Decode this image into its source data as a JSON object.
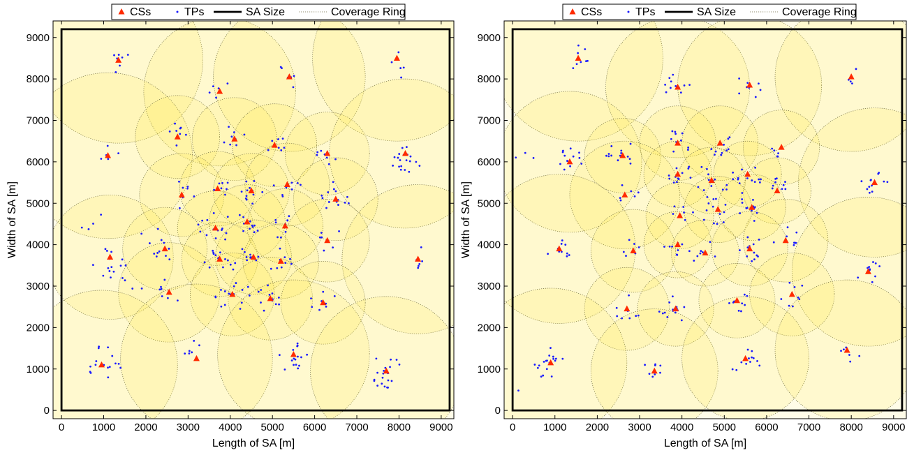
{
  "chart_data": [
    {
      "type": "scatter",
      "xlabel": "Length of SA [m]",
      "ylabel": "Width of SA [m]",
      "xlim": [
        -200,
        9300
      ],
      "ylim": [
        -200,
        9400
      ],
      "xticks": [
        0,
        1000,
        2000,
        3000,
        4000,
        5000,
        6000,
        7000,
        8000,
        9000
      ],
      "yticks": [
        0,
        1000,
        2000,
        3000,
        4000,
        5000,
        6000,
        7000,
        8000,
        9000
      ],
      "sa_size": [
        0,
        0,
        9200,
        9200
      ],
      "legend": {
        "position": "top",
        "entries": [
          "CSs",
          "TPs",
          "SA Size",
          "Coverage Ring"
        ]
      },
      "series": [
        {
          "name": "CSs",
          "marker": "triangle",
          "color": "#ff2a00",
          "points": [
            [
              1350,
              8450
            ],
            [
              3750,
              7700
            ],
            [
              5400,
              8050
            ],
            [
              7950,
              8500
            ],
            [
              1100,
              6150
            ],
            [
              2750,
              6600
            ],
            [
              4100,
              6550
            ],
            [
              5050,
              6400
            ],
            [
              6300,
              6200
            ],
            [
              8150,
              6200
            ],
            [
              2850,
              5200
            ],
            [
              3700,
              5350
            ],
            [
              4500,
              5300
            ],
            [
              5350,
              5450
            ],
            [
              6500,
              5100
            ],
            [
              3650,
              4400
            ],
            [
              4400,
              4550
            ],
            [
              5300,
              4450
            ],
            [
              6300,
              4100
            ],
            [
              1150,
              3700
            ],
            [
              2450,
              3900
            ],
            [
              3750,
              3650
            ],
            [
              4550,
              3700
            ],
            [
              5200,
              3600
            ],
            [
              8450,
              3650
            ],
            [
              2550,
              2850
            ],
            [
              4050,
              2800
            ],
            [
              4950,
              2700
            ],
            [
              6200,
              2600
            ],
            [
              950,
              1100
            ],
            [
              3200,
              1250
            ],
            [
              5500,
              1350
            ],
            [
              7700,
              950
            ]
          ]
        },
        {
          "name": "TPs",
          "marker": "dot",
          "color": "#1a1aff",
          "clusters": [
            [
              1350,
              8450,
              7
            ],
            [
              3750,
              7700,
              6
            ],
            [
              5400,
              8050,
              6
            ],
            [
              8050,
              8350,
              5
            ],
            [
              1100,
              6150,
              5
            ],
            [
              2750,
              6600,
              8
            ],
            [
              4100,
              6550,
              9
            ],
            [
              5050,
              6400,
              7
            ],
            [
              6300,
              6200,
              8
            ],
            [
              8200,
              6100,
              20
            ],
            [
              2850,
              5200,
              7
            ],
            [
              3700,
              5350,
              8
            ],
            [
              4500,
              5300,
              12
            ],
            [
              5350,
              5450,
              8
            ],
            [
              6500,
              5100,
              14
            ],
            [
              3650,
              4400,
              14
            ],
            [
              4400,
              4550,
              12
            ],
            [
              5300,
              4450,
              10
            ],
            [
              6300,
              4150,
              7
            ],
            [
              1150,
              3600,
              14
            ],
            [
              2450,
              3900,
              8
            ],
            [
              3750,
              3650,
              16
            ],
            [
              4550,
              3700,
              9
            ],
            [
              5200,
              3600,
              9
            ],
            [
              8450,
              3700,
              6
            ],
            [
              2550,
              2850,
              7
            ],
            [
              4050,
              2800,
              16
            ],
            [
              4950,
              2700,
              12
            ],
            [
              6200,
              2600,
              8
            ],
            [
              1000,
              1150,
              16
            ],
            [
              3200,
              1400,
              6
            ],
            [
              5500,
              1300,
              16
            ],
            [
              7700,
              950,
              20
            ],
            [
              1600,
              3000,
              4
            ],
            [
              2200,
              4200,
              4
            ],
            [
              700,
              4600,
              4
            ]
          ]
        },
        {
          "name": "Coverage Ring",
          "circles": [
            [
              1350,
              8450,
              2000
            ],
            [
              3750,
              7700,
              1800
            ],
            [
              5400,
              8050,
              1800
            ],
            [
              7950,
              8500,
              2000
            ],
            [
              1100,
              6150,
              2000
            ],
            [
              2750,
              6600,
              1000
            ],
            [
              4100,
              6550,
              1000
            ],
            [
              5050,
              6400,
              1000
            ],
            [
              6300,
              6200,
              1000
            ],
            [
              8150,
              6200,
              1800
            ],
            [
              2850,
              5200,
              1000
            ],
            [
              3700,
              5350,
              900
            ],
            [
              4500,
              5300,
              900
            ],
            [
              5350,
              5450,
              1000
            ],
            [
              6500,
              5100,
              1000
            ],
            [
              3650,
              4400,
              900
            ],
            [
              4400,
              4550,
              900
            ],
            [
              5300,
              4450,
              900
            ],
            [
              6300,
              4100,
              1000
            ],
            [
              1150,
              3700,
              1500
            ],
            [
              2450,
              3900,
              1000
            ],
            [
              3750,
              3650,
              900
            ],
            [
              4550,
              3700,
              900
            ],
            [
              5200,
              3600,
              900
            ],
            [
              8450,
              3650,
              1800
            ],
            [
              2550,
              2850,
              1200
            ],
            [
              4050,
              2800,
              1000
            ],
            [
              4950,
              2700,
              1000
            ],
            [
              6200,
              2600,
              1000
            ],
            [
              950,
              1100,
              1800
            ],
            [
              3200,
              1250,
              1800
            ],
            [
              5500,
              1350,
              1800
            ],
            [
              7700,
              950,
              1800
            ]
          ]
        }
      ]
    },
    {
      "type": "scatter",
      "xlabel": "Length of SA [m]",
      "ylabel": "Width of SA [m]",
      "xlim": [
        -200,
        9300
      ],
      "ylim": [
        -200,
        9400
      ],
      "xticks": [
        0,
        1000,
        2000,
        3000,
        4000,
        5000,
        6000,
        7000,
        8000,
        9000
      ],
      "yticks": [
        0,
        1000,
        2000,
        3000,
        4000,
        5000,
        6000,
        7000,
        8000,
        9000
      ],
      "sa_size": [
        0,
        0,
        9200,
        9200
      ],
      "legend": {
        "position": "top",
        "entries": [
          "CSs",
          "TPs",
          "SA Size",
          "Coverage Ring"
        ]
      },
      "series": [
        {
          "name": "CSs",
          "marker": "triangle",
          "color": "#ff2a00",
          "points": [
            [
              1550,
              8500
            ],
            [
              3900,
              7800
            ],
            [
              5600,
              7850
            ],
            [
              8000,
              8050
            ],
            [
              1350,
              6000
            ],
            [
              2600,
              6150
            ],
            [
              3900,
              6450
            ],
            [
              4900,
              6450
            ],
            [
              6350,
              6350
            ],
            [
              8550,
              5500
            ],
            [
              2650,
              5200
            ],
            [
              3900,
              5700
            ],
            [
              4700,
              5550
            ],
            [
              5550,
              5700
            ],
            [
              6250,
              5300
            ],
            [
              3950,
              4700
            ],
            [
              4850,
              4850
            ],
            [
              5650,
              4900
            ],
            [
              6450,
              4100
            ],
            [
              1100,
              3900
            ],
            [
              2850,
              3850
            ],
            [
              3900,
              4000
            ],
            [
              4550,
              3800
            ],
            [
              5600,
              3900
            ],
            [
              8400,
              3350
            ],
            [
              2700,
              2450
            ],
            [
              3850,
              2450
            ],
            [
              5300,
              2650
            ],
            [
              6600,
              2800
            ],
            [
              900,
              1150
            ],
            [
              3350,
              950
            ],
            [
              5500,
              1250
            ],
            [
              7900,
              1450
            ]
          ]
        },
        {
          "name": "TPs",
          "marker": "dot",
          "color": "#1a1aff",
          "clusters": [
            [
              1550,
              8500,
              9
            ],
            [
              3900,
              7800,
              12
            ],
            [
              5600,
              7850,
              8
            ],
            [
              7900,
              8000,
              4
            ],
            [
              1350,
              6000,
              12
            ],
            [
              2600,
              6150,
              14
            ],
            [
              3900,
              6450,
              10
            ],
            [
              4900,
              6450,
              10
            ],
            [
              6350,
              6350,
              6
            ],
            [
              8550,
              5500,
              12
            ],
            [
              2650,
              5200,
              6
            ],
            [
              3900,
              5700,
              12
            ],
            [
              4700,
              5550,
              14
            ],
            [
              5550,
              5700,
              14
            ],
            [
              6250,
              5300,
              10
            ],
            [
              3950,
              4700,
              8
            ],
            [
              4850,
              4850,
              14
            ],
            [
              5650,
              4900,
              14
            ],
            [
              6450,
              4100,
              8
            ],
            [
              1100,
              3900,
              10
            ],
            [
              2850,
              3850,
              6
            ],
            [
              3900,
              4000,
              10
            ],
            [
              4550,
              3800,
              8
            ],
            [
              5600,
              3900,
              12
            ],
            [
              8400,
              3350,
              10
            ],
            [
              2700,
              2450,
              8
            ],
            [
              3850,
              2450,
              14
            ],
            [
              5300,
              2650,
              10
            ],
            [
              6600,
              2800,
              8
            ],
            [
              900,
              1150,
              20
            ],
            [
              3350,
              950,
              8
            ],
            [
              5500,
              1250,
              14
            ],
            [
              7900,
              1450,
              6
            ],
            [
              300,
              6200,
              3
            ],
            [
              100,
              400,
              1
            ]
          ]
        },
        {
          "name": "Coverage Ring",
          "circles": [
            [
              1550,
              8500,
              2000
            ],
            [
              3900,
              7800,
              1700
            ],
            [
              5600,
              7850,
              1700
            ],
            [
              8000,
              8050,
              1800
            ],
            [
              1350,
              6000,
              1700
            ],
            [
              2600,
              6150,
              900
            ],
            [
              3900,
              6450,
              900
            ],
            [
              4900,
              6450,
              900
            ],
            [
              6350,
              6350,
              900
            ],
            [
              8550,
              5500,
              1800
            ],
            [
              2650,
              5200,
              1300
            ],
            [
              3900,
              5700,
              800
            ],
            [
              4700,
              5550,
              800
            ],
            [
              5550,
              5700,
              800
            ],
            [
              6250,
              5300,
              800
            ],
            [
              3950,
              4700,
              800
            ],
            [
              4850,
              4850,
              800
            ],
            [
              5650,
              4900,
              800
            ],
            [
              6450,
              4100,
              1000
            ],
            [
              1100,
              3900,
              1800
            ],
            [
              2850,
              3850,
              1000
            ],
            [
              3900,
              4000,
              800
            ],
            [
              4550,
              3800,
              800
            ],
            [
              5600,
              3900,
              900
            ],
            [
              8400,
              3350,
              1800
            ],
            [
              2700,
              2450,
              1000
            ],
            [
              3850,
              2450,
              900
            ],
            [
              5300,
              2650,
              900
            ],
            [
              6600,
              2800,
              1000
            ],
            [
              900,
              1150,
              1800
            ],
            [
              3350,
              950,
              1500
            ],
            [
              5500,
              1250,
              1500
            ],
            [
              7900,
              1450,
              1700
            ]
          ]
        }
      ]
    }
  ]
}
